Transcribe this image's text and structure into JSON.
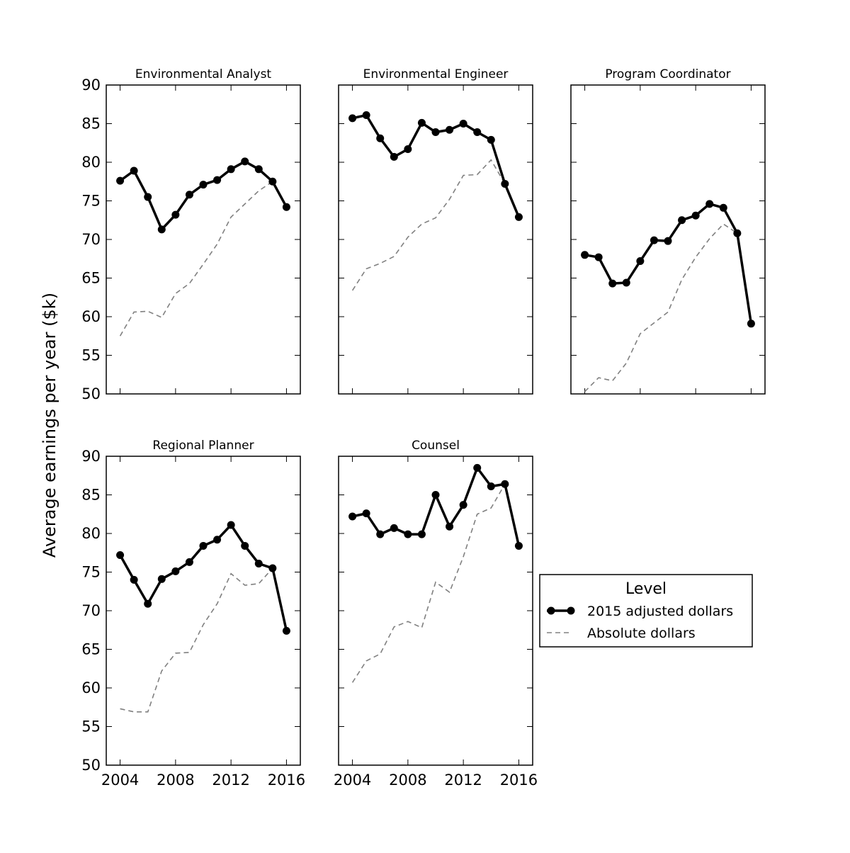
{
  "chart_data": {
    "type": "line",
    "ylabel": "Average earnings per year ($k)",
    "ylim": [
      50,
      90
    ],
    "yticks": [
      50,
      55,
      60,
      65,
      70,
      75,
      80,
      85,
      90
    ],
    "xlim": [
      2003,
      2017
    ],
    "xticks": [
      2004,
      2008,
      2012,
      2016
    ],
    "x": [
      2004,
      2005,
      2006,
      2007,
      2008,
      2009,
      2010,
      2011,
      2012,
      2013,
      2014,
      2015,
      2016
    ],
    "grid": false,
    "legend": {
      "title": "Level",
      "entries": [
        "2015 adjusted dollars",
        "Absolute dollars"
      ],
      "placement": "lower-right (empty panel position)"
    },
    "colors": {
      "adjusted": "#000000",
      "absolute": "#808080"
    },
    "panels": [
      {
        "title": "Environmental Analyst",
        "series": [
          {
            "name": "2015 adjusted dollars",
            "values": [
              77.6,
              78.9,
              75.5,
              71.3,
              73.2,
              75.8,
              77.1,
              77.7,
              79.1,
              80.1,
              79.1,
              77.5,
              74.2
            ]
          },
          {
            "name": "Absolute dollars",
            "values": [
              57.5,
              60.6,
              60.7,
              59.9,
              63.0,
              64.3,
              66.8,
              69.4,
              72.9,
              74.6,
              76.3,
              77.5,
              74.2
            ]
          }
        ]
      },
      {
        "title": "Environmental Engineer",
        "series": [
          {
            "name": "2015 adjusted dollars",
            "values": [
              85.7,
              86.1,
              83.1,
              80.7,
              81.7,
              85.1,
              83.9,
              84.2,
              85.0,
              83.9,
              82.9,
              77.2,
              72.9
            ]
          },
          {
            "name": "Absolute dollars",
            "values": [
              63.4,
              66.2,
              66.9,
              67.8,
              70.3,
              72.0,
              72.8,
              75.2,
              78.3,
              78.4,
              80.3,
              77.2,
              72.9
            ]
          }
        ]
      },
      {
        "title": "Program Coordinator",
        "series": [
          {
            "name": "2015 adjusted dollars",
            "values": [
              68.0,
              67.7,
              64.3,
              64.4,
              67.2,
              69.9,
              69.8,
              72.5,
              73.1,
              74.6,
              74.1,
              70.8,
              59.1
            ]
          },
          {
            "name": "Absolute dollars",
            "values": [
              50.3,
              52.1,
              51.7,
              54.0,
              57.8,
              59.2,
              60.6,
              64.8,
              67.7,
              70.1,
              72.0,
              70.8,
              59.1
            ]
          }
        ]
      },
      {
        "title": "Regional Planner",
        "series": [
          {
            "name": "2015 adjusted dollars",
            "values": [
              77.2,
              74.0,
              70.9,
              74.1,
              75.1,
              76.3,
              78.4,
              79.2,
              81.1,
              78.4,
              76.1,
              75.5,
              67.4
            ]
          },
          {
            "name": "Absolute dollars",
            "values": [
              57.3,
              56.9,
              56.9,
              62.2,
              64.5,
              64.6,
              68.2,
              70.9,
              74.8,
              73.3,
              73.5,
              75.5,
              67.4
            ]
          }
        ]
      },
      {
        "title": "Counsel",
        "series": [
          {
            "name": "2015 adjusted dollars",
            "values": [
              82.2,
              82.6,
              79.9,
              80.7,
              79.9,
              79.9,
              85.0,
              80.9,
              83.7,
              88.5,
              86.1,
              86.4,
              78.4
            ]
          },
          {
            "name": "Absolute dollars",
            "values": [
              60.7,
              63.5,
              64.4,
              67.9,
              68.6,
              67.8,
              73.7,
              72.4,
              77.0,
              82.5,
              83.3,
              86.4,
              78.4
            ]
          }
        ]
      }
    ]
  }
}
